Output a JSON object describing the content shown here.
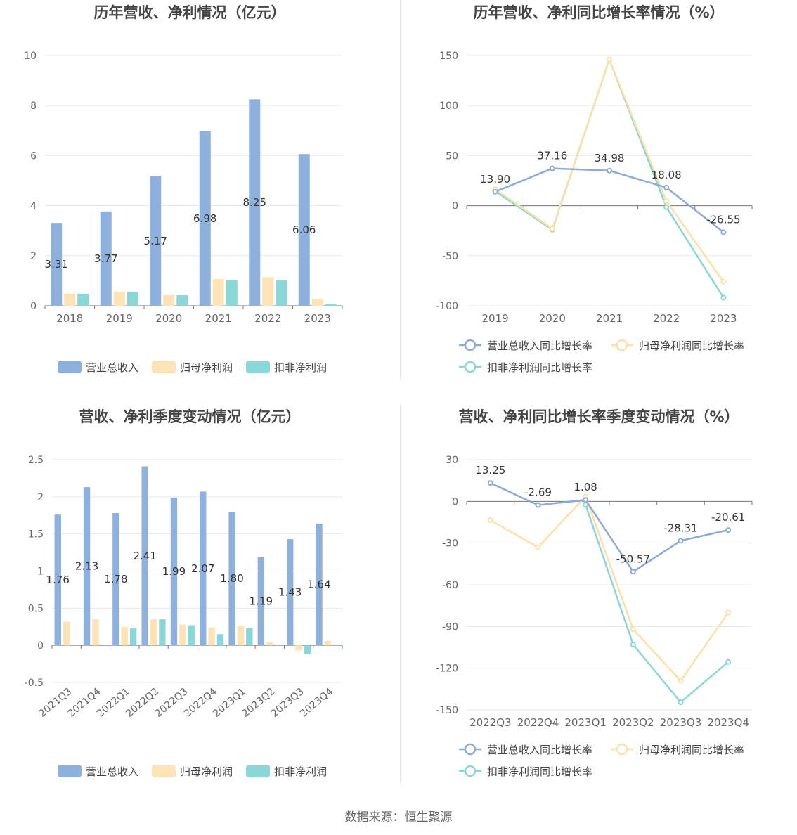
{
  "source": "数据来源：恒生聚源",
  "chart_data": [
    {
      "type": "bar",
      "title": "历年营收、净利情况（亿元）",
      "categories": [
        "2018",
        "2019",
        "2020",
        "2021",
        "2022",
        "2023"
      ],
      "series": [
        {
          "name": "营业总收入",
          "values": [
            3.31,
            3.77,
            5.17,
            6.98,
            8.25,
            6.06
          ],
          "color": "#8eb0dc",
          "labels": [
            "3.31",
            "3.77",
            "5.17",
            "6.98",
            "8.25",
            "6.06"
          ]
        },
        {
          "name": "归母净利润",
          "values": [
            0.48,
            0.57,
            0.43,
            1.07,
            1.14,
            0.27
          ],
          "color": "#fde3b6"
        },
        {
          "name": "扣非净利润",
          "values": [
            0.48,
            0.56,
            0.42,
            1.02,
            1.01,
            0.08
          ],
          "color": "#8ad6d9"
        }
      ],
      "ylim": [
        0,
        10
      ],
      "yticks": [
        "0",
        "2",
        "4",
        "6",
        "8",
        "10"
      ],
      "ytick_values": [
        0,
        2,
        4,
        6,
        8,
        10
      ],
      "legend_position": "bottom",
      "grid": true
    },
    {
      "type": "line",
      "title": "历年营收、净利同比增长率情况（%）",
      "categories": [
        "2019",
        "2020",
        "2021",
        "2022",
        "2023"
      ],
      "series": [
        {
          "name": "营业总收入同比增长率",
          "values": [
            13.9,
            37.16,
            34.98,
            18.08,
            -26.55
          ],
          "color": "#8eaad6",
          "labels": [
            "13.90",
            "37.16",
            "34.98",
            "18.08",
            "-26.55"
          ]
        },
        {
          "name": "归母净利润同比增长率",
          "values": [
            16.5,
            -23.0,
            146.0,
            4.5,
            -76.0
          ],
          "color": "#fde0a8"
        },
        {
          "name": "扣非净利润同比增长率",
          "values": [
            14.5,
            -24.0,
            146.0,
            -1.5,
            -92.0
          ],
          "color": "#8ad6d9"
        }
      ],
      "ylim": [
        -100,
        150
      ],
      "yticks": [
        "150",
        "100",
        "50",
        "0",
        "-50",
        "-100"
      ],
      "ytick_values": [
        150,
        100,
        50,
        0,
        -50,
        -100
      ],
      "legend_position": "bottom",
      "grid": true
    },
    {
      "type": "bar",
      "title": "营收、净利季度变动情况（亿元）",
      "categories": [
        "2021Q3",
        "2021Q4",
        "2022Q1",
        "2022Q2",
        "2022Q3",
        "2022Q4",
        "2023Q1",
        "2023Q2",
        "2023Q3",
        "2023Q4"
      ],
      "series": [
        {
          "name": "营业总收入",
          "values": [
            1.76,
            2.13,
            1.78,
            2.41,
            1.99,
            2.07,
            1.8,
            1.19,
            1.43,
            1.64
          ],
          "color": "#8eb0dc",
          "labels": [
            "1.76",
            "2.13",
            "1.78",
            "2.41",
            "1.99",
            "2.07",
            "1.80",
            "1.19",
            "1.43",
            "1.64"
          ]
        },
        {
          "name": "归母净利润",
          "values": [
            0.32,
            0.36,
            0.25,
            0.35,
            0.28,
            0.24,
            0.26,
            0.04,
            -0.07,
            0.06
          ],
          "color": "#fde3b6"
        },
        {
          "name": "扣非净利润",
          "values": [
            0.0,
            0.0,
            0.23,
            0.35,
            0.27,
            0.15,
            0.23,
            0.01,
            -0.12,
            0.01
          ],
          "color": "#8ad6d9"
        }
      ],
      "ylim": [
        -0.5,
        2.5
      ],
      "yticks": [
        "2.5",
        "2",
        "1.5",
        "1",
        "0.5",
        "0",
        "-0.5"
      ],
      "ytick_values": [
        2.5,
        2,
        1.5,
        1,
        0.5,
        0,
        -0.5
      ],
      "legend_position": "bottom",
      "grid": true
    },
    {
      "type": "line",
      "title": "营收、净利同比增长率季度变动情况（%）",
      "categories": [
        "2022Q3",
        "2022Q4",
        "2023Q1",
        "2023Q2",
        "2023Q3",
        "2023Q4"
      ],
      "series": [
        {
          "name": "营业总收入同比增长率",
          "values": [
            13.25,
            -2.69,
            1.08,
            -50.57,
            -28.31,
            -20.61
          ],
          "color": "#8eaad6",
          "labels": [
            "13.25",
            "-2.69",
            "1.08",
            "-50.57",
            "-28.31",
            "-20.61"
          ]
        },
        {
          "name": "归母净利润同比增长率",
          "values": [
            -13.5,
            -33.0,
            3.5,
            -92.0,
            -129.0,
            -80.0
          ],
          "color": "#fde0a8"
        },
        {
          "name": "扣非净利润同比增长率",
          "values": [
            null,
            null,
            -2.5,
            -103.0,
            -144.5,
            -115.5
          ],
          "color": "#8ad6d9"
        }
      ],
      "ylim": [
        -150,
        30
      ],
      "yticks": [
        "30",
        "0",
        "-30",
        "-60",
        "-90",
        "-120",
        "-150"
      ],
      "ytick_values": [
        30,
        0,
        -30,
        -60,
        -90,
        -120,
        -150
      ],
      "legend_position": "bottom",
      "grid": true
    }
  ]
}
